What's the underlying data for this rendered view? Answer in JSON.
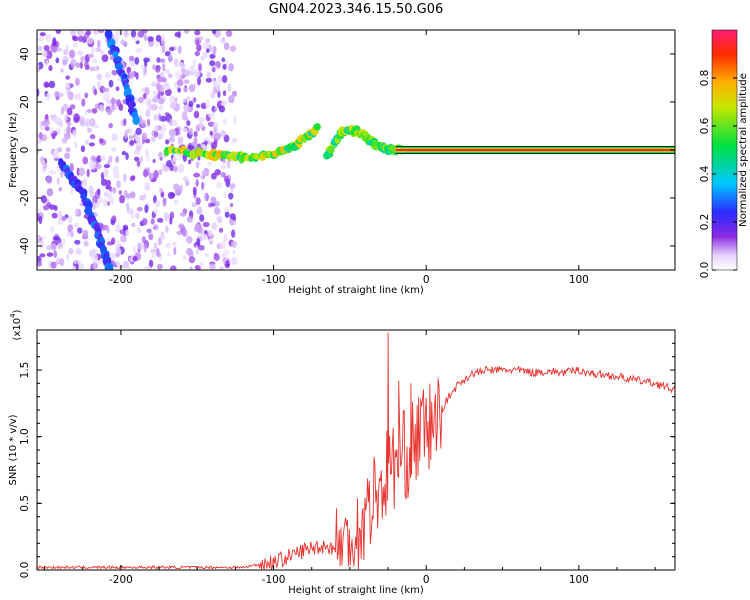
{
  "title": "GN04.2023.346.15.50.G06",
  "colors": {
    "snr_line": "#e8332e",
    "axis": "#000000",
    "scatter_base": "#7b2bff"
  },
  "chart_data": [
    {
      "type": "heatmap",
      "name": "spectrogram",
      "xlabel": "Height of straight line (km)",
      "ylabel": "Frequency (Hz)",
      "xlim": [
        -255,
        163
      ],
      "ylim": [
        -50,
        50
      ],
      "xticks": [
        -200,
        -100,
        0,
        100
      ],
      "yticks": [
        -40,
        -20,
        0,
        20,
        40
      ],
      "xtick_labels": [
        "-200",
        "-100",
        "0",
        "100"
      ],
      "ytick_labels": [
        "-40",
        "-20",
        "0",
        "20",
        "40"
      ],
      "features": [
        {
          "label": "noise band",
          "x_range": [
            -255,
            -125
          ],
          "freq_range": [
            -50,
            50
          ],
          "amplitude": 0.1
        },
        {
          "label": "track A",
          "points": [
            [
              -208,
              48
            ],
            [
              -198,
              30
            ],
            [
              -190,
              12
            ]
          ],
          "amplitude": 0.25
        },
        {
          "label": "track B",
          "points": [
            [
              -240,
              -5
            ],
            [
              -225,
              -18
            ],
            [
              -215,
              -35
            ],
            [
              -207,
              -50
            ]
          ],
          "amplitude": 0.25
        },
        {
          "label": "rising signal",
          "points": [
            [
              -170,
              0
            ],
            [
              -140,
              -2
            ],
            [
              -120,
              -3
            ],
            [
              -100,
              -2
            ],
            [
              -85,
              2
            ],
            [
              -70,
              10
            ]
          ],
          "amplitude": 0.6
        },
        {
          "label": "signal cluster",
          "points": [
            [
              -65,
              -3
            ],
            [
              -55,
              8
            ],
            [
              -45,
              8
            ],
            [
              -35,
              3
            ],
            [
              -25,
              0
            ],
            [
              -15,
              0
            ]
          ],
          "amplitude": 0.55
        },
        {
          "label": "steady carrier",
          "x_range": [
            -20,
            163
          ],
          "freq": 0,
          "amplitude": 1.0
        }
      ],
      "colorbar": {
        "label": "Normalized spectral amplitude",
        "range": [
          0,
          1
        ],
        "ticks": [
          0.0,
          0.2,
          0.4,
          0.6,
          0.8
        ],
        "tick_labels": [
          "0.0",
          "0.2",
          "0.4",
          "0.6",
          "0.8"
        ]
      }
    },
    {
      "type": "line",
      "name": "snr",
      "xlabel": "Height of straight line (km)",
      "ylabel": "SNR (10 * v/v)",
      "scale_label": "(x10",
      "scale_exponent": "4",
      "xlim": [
        -255,
        163
      ],
      "ylim": [
        0,
        1.8
      ],
      "xticks": [
        -200,
        -100,
        0,
        100
      ],
      "yticks": [
        0.0,
        0.5,
        1.0,
        1.5
      ],
      "xtick_labels": [
        "-200",
        "-100",
        "0",
        "100"
      ],
      "ytick_labels": [
        "0.0",
        "0.5",
        "1.0",
        "1.5"
      ],
      "x": [
        -255,
        -240,
        -220,
        -200,
        -180,
        -160,
        -140,
        -120,
        -110,
        -100,
        -90,
        -80,
        -70,
        -60,
        -50,
        -45,
        -40,
        -35,
        -30,
        -25,
        -20,
        -15,
        -10,
        -5,
        0,
        5,
        10,
        15,
        20,
        25,
        30,
        40,
        50,
        60,
        70,
        80,
        90,
        100,
        110,
        120,
        130,
        140,
        150,
        163
      ],
      "values": [
        0.02,
        0.02,
        0.02,
        0.02,
        0.02,
        0.02,
        0.02,
        0.02,
        0.04,
        0.06,
        0.1,
        0.15,
        0.18,
        0.17,
        0.2,
        0.28,
        0.4,
        0.55,
        0.6,
        0.75,
        0.8,
        0.85,
        0.9,
        1.0,
        1.05,
        1.1,
        1.2,
        1.3,
        1.38,
        1.43,
        1.47,
        1.5,
        1.5,
        1.5,
        1.48,
        1.49,
        1.48,
        1.5,
        1.47,
        1.46,
        1.44,
        1.42,
        1.4,
        1.35
      ],
      "spikes": [
        [
          -25,
          1.78
        ],
        [
          -18,
          1.42
        ],
        [
          -10,
          1.4
        ],
        [
          -5,
          1.3
        ]
      ]
    }
  ]
}
